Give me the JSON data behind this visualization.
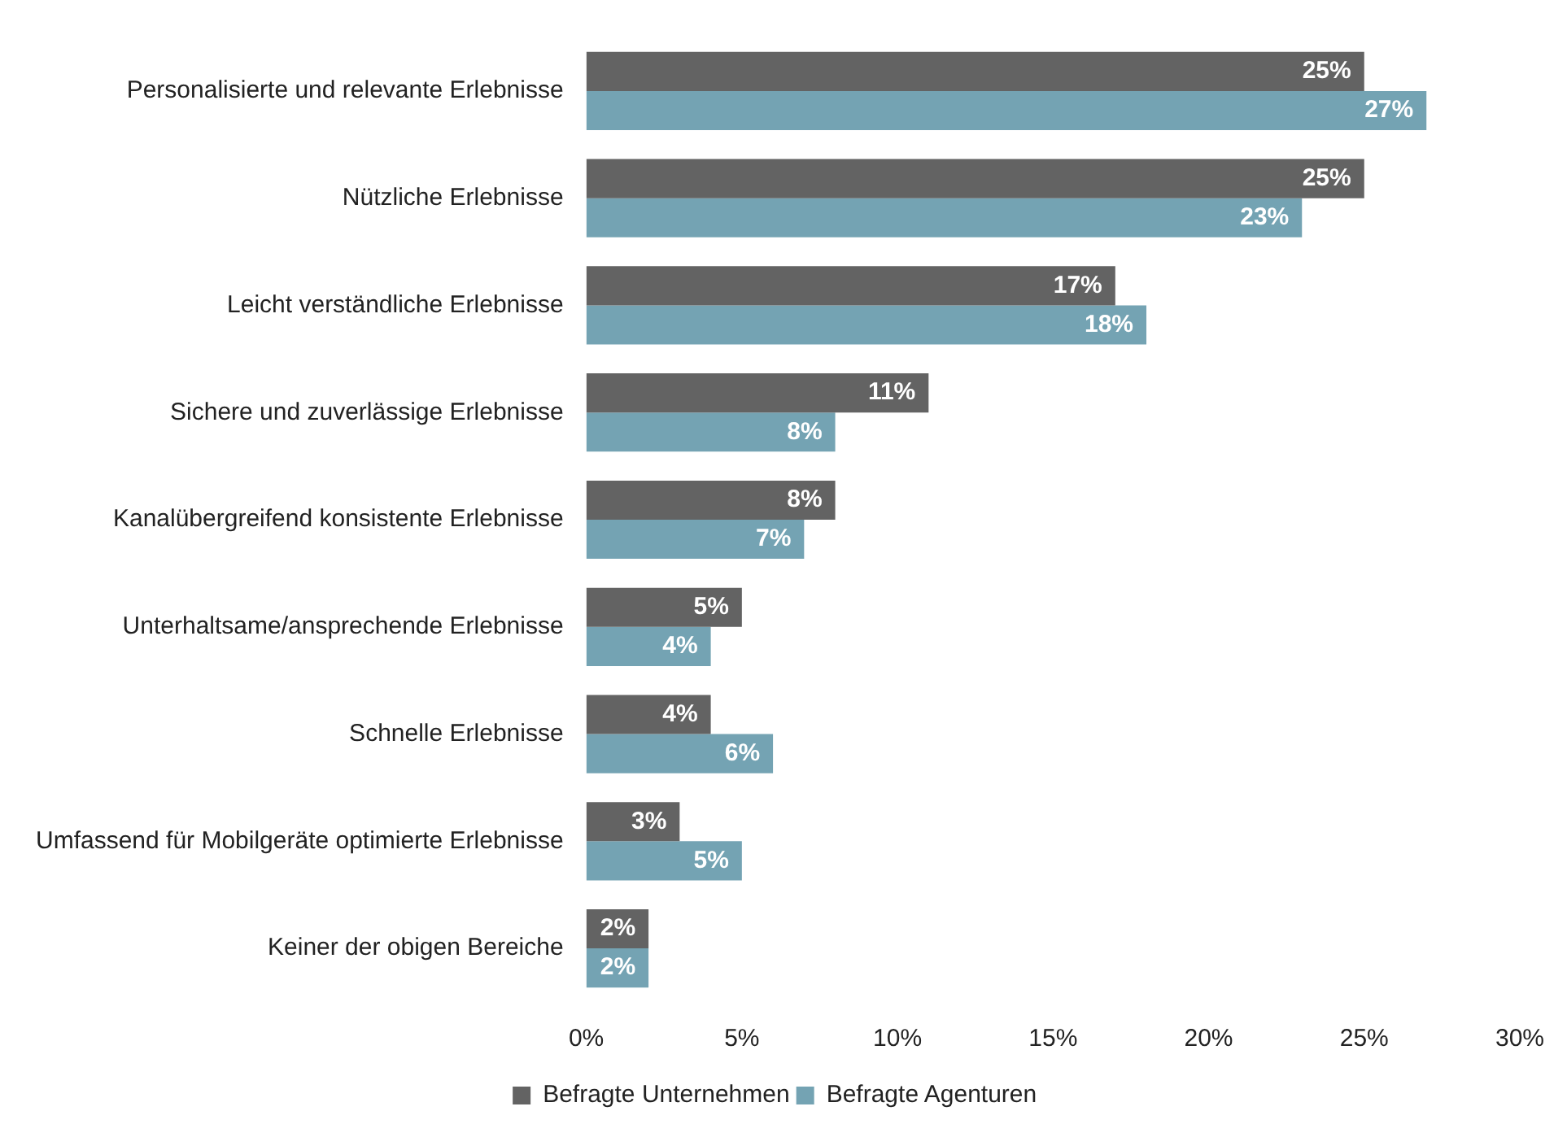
{
  "chart_data": {
    "type": "bar",
    "orientation": "horizontal",
    "categories": [
      "Personalisierte und relevante Erlebnisse",
      "Nützliche Erlebnisse",
      "Leicht verständliche Erlebnisse",
      "Sichere und zuverlässige Erlebnisse",
      "Kanalübergreifend konsistente Erlebnisse",
      "Unterhaltsame/ansprechende Erlebnisse",
      "Schnelle Erlebnisse",
      "Umfassend für Mobilgeräte optimierte Erlebnisse",
      "Keiner der obigen Bereiche"
    ],
    "series": [
      {
        "name": "Befragte Unternehmen",
        "color": "#636363",
        "values": [
          25,
          25,
          17,
          11,
          8,
          5,
          4,
          3,
          2
        ],
        "value_labels": [
          "25%",
          "25%",
          "17%",
          "11%",
          "8%",
          "5%",
          "4%",
          "3%",
          "2%"
        ]
      },
      {
        "name": "Befragte Agenturen",
        "color": "#74a3b3",
        "values": [
          27,
          23,
          18,
          8,
          7,
          4,
          6,
          5,
          2
        ],
        "value_labels": [
          "27%",
          "23%",
          "18%",
          "8%",
          "7%",
          "4%",
          "6%",
          "5%",
          "2%"
        ]
      }
    ],
    "xlim": [
      0,
      30
    ],
    "xticks": [
      {
        "value": 0,
        "label": "0%"
      },
      {
        "value": 5,
        "label": "5%"
      },
      {
        "value": 10,
        "label": "10%"
      },
      {
        "value": 15,
        "label": "15%"
      },
      {
        "value": 20,
        "label": "20%"
      },
      {
        "value": 25,
        "label": "25%"
      },
      {
        "value": 30,
        "label": "30%"
      }
    ],
    "grid": false,
    "legend": "bottom"
  }
}
